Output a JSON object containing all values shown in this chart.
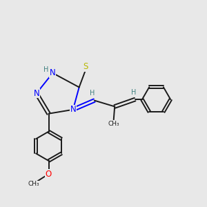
{
  "bg_color": "#e8e8e8",
  "bond_color": "#1a1a1a",
  "N_color": "#0000ff",
  "S_color": "#b8b800",
  "O_color": "#ff0000",
  "H_color": "#408080",
  "font_size": 8.5,
  "small_font": 7.0,
  "lw": 1.4,
  "xlim": [
    0,
    10
  ],
  "ylim": [
    0,
    10
  ]
}
